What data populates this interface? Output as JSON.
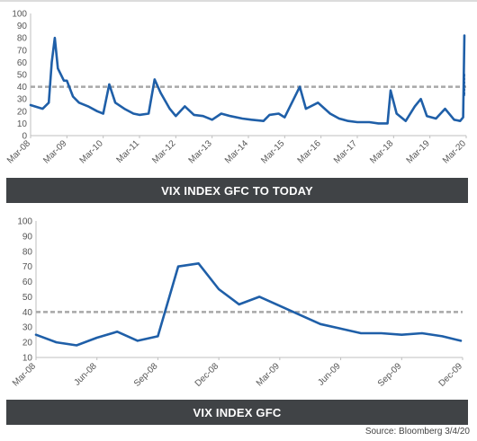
{
  "chart_data": [
    {
      "type": "line",
      "title": "VIX INDEX GFC TO TODAY",
      "xlabel": "",
      "ylabel": "",
      "ylim": [
        0,
        100
      ],
      "yticks": [
        0,
        10,
        20,
        30,
        40,
        50,
        60,
        70,
        80,
        90,
        100
      ],
      "x_tick_labels": [
        "Mar-08",
        "Mar-09",
        "Mar-10",
        "Mar-11",
        "Mar-12",
        "Mar-13",
        "Mar-14",
        "Mar-15",
        "Mar-16",
        "Mar-17",
        "Mar-18",
        "Mar-19",
        "Mar-20"
      ],
      "grid": false,
      "reference_line": {
        "value": 40,
        "style": "dashed",
        "color": "#a8a8a8"
      },
      "series": [
        {
          "color": "#1f5fa8",
          "x": [
            "Mar-08",
            "Jul-08",
            "Sep-08",
            "Oct-08",
            "Nov-08",
            "Dec-08",
            "Feb-09",
            "Mar-09",
            "May-09",
            "Jul-09",
            "Oct-09",
            "Jan-10",
            "Mar-10",
            "May-10",
            "Jul-10",
            "Oct-10",
            "Jan-11",
            "Mar-11",
            "Jun-11",
            "Aug-11",
            "Oct-11",
            "Jan-12",
            "Mar-12",
            "Jun-12",
            "Sep-12",
            "Dec-12",
            "Mar-13",
            "Jun-13",
            "Sep-13",
            "Jan-14",
            "Apr-14",
            "Aug-14",
            "Oct-14",
            "Jan-15",
            "Mar-15",
            "Aug-15",
            "Oct-15",
            "Feb-16",
            "Jun-16",
            "Sep-16",
            "Dec-16",
            "Mar-17",
            "Jul-17",
            "Oct-17",
            "Jan-18",
            "Feb-18",
            "Apr-18",
            "Jul-18",
            "Oct-18",
            "Dec-18",
            "Feb-19",
            "May-19",
            "Aug-19",
            "Nov-19",
            "Jan-20",
            "Feb-20",
            "Mar-20"
          ],
          "values": [
            25,
            22,
            27,
            60,
            80,
            55,
            45,
            45,
            32,
            27,
            24,
            20,
            18,
            42,
            27,
            22,
            18,
            17,
            18,
            46,
            35,
            22,
            16,
            24,
            17,
            16,
            13,
            18,
            16,
            14,
            13,
            12,
            17,
            18,
            15,
            40,
            22,
            27,
            18,
            14,
            12,
            11,
            11,
            10,
            10,
            37,
            18,
            12,
            24,
            30,
            16,
            14,
            22,
            13,
            12,
            15,
            82
          ]
        },
        {
          "color": "#1f5fa8",
          "style": "dotted",
          "x": [
            "Mar-20",
            "Apr-20"
          ],
          "values": [
            50,
            33
          ]
        }
      ]
    },
    {
      "type": "line",
      "title": "VIX INDEX GFC",
      "xlabel": "",
      "ylabel": "",
      "ylim": [
        10,
        100
      ],
      "yticks": [
        10,
        20,
        30,
        40,
        50,
        60,
        70,
        80,
        90,
        100
      ],
      "x_tick_labels": [
        "Mar-08",
        "Jun-08",
        "Sep-08",
        "Dec-08",
        "Mar-09",
        "Jun-09",
        "Sep-09",
        "Dec-09"
      ],
      "grid": false,
      "reference_line": {
        "value": 40,
        "style": "dashed",
        "color": "#a8a8a8"
      },
      "series": [
        {
          "color": "#1f5fa8",
          "x": [
            "Mar-08",
            "Apr-08",
            "May-08",
            "Jun-08",
            "Jul-08",
            "Aug-08",
            "Sep-08",
            "Oct-08",
            "Nov-08",
            "Dec-08",
            "Jan-09",
            "Feb-09",
            "Mar-09",
            "Apr-09",
            "May-09",
            "Jun-09",
            "Jul-09",
            "Aug-09",
            "Sep-09",
            "Oct-09",
            "Nov-09",
            "Dec-09"
          ],
          "values": [
            25,
            20,
            18,
            23,
            27,
            21,
            24,
            70,
            72,
            55,
            45,
            50,
            44,
            38,
            32,
            29,
            26,
            26,
            25,
            26,
            24,
            21
          ]
        }
      ]
    }
  ],
  "banners": {
    "top": "VIX INDEX GFC TO TODAY",
    "bottom": "VIX INDEX GFC"
  },
  "source": "Source: Bloomberg 3/4/20"
}
